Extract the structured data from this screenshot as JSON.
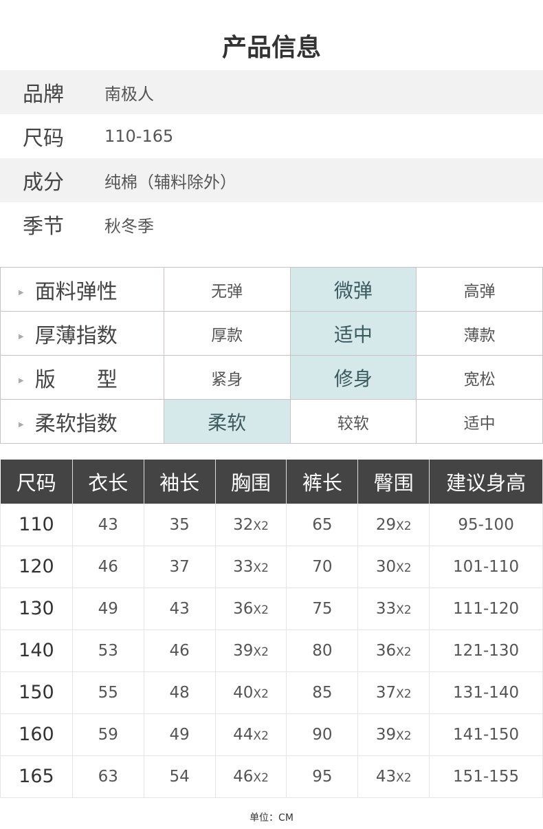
{
  "title": "产品信息",
  "info": [
    {
      "label": "品牌",
      "value": "南极人"
    },
    {
      "label": "尺码",
      "value": "110-165"
    },
    {
      "label": "成分",
      "value": "纯棉（辅料除外）"
    },
    {
      "label": "季节",
      "value": "秋冬季"
    }
  ],
  "highlight_color": "#d5e8ea",
  "attributes": [
    {
      "label": "面料弹性",
      "options": [
        "无弹",
        "微弹",
        "高弹"
      ],
      "selected": 1
    },
    {
      "label": "厚薄指数",
      "options": [
        "厚款",
        "适中",
        "薄款"
      ],
      "selected": 1
    },
    {
      "label": "版　　型",
      "options": [
        "紧身",
        "修身",
        "宽松"
      ],
      "selected": 1
    },
    {
      "label": "柔软指数",
      "options": [
        "柔软",
        "较软",
        "适中"
      ],
      "selected": 0
    }
  ],
  "size_table": {
    "headers": [
      "尺码",
      "衣长",
      "袖长",
      "胸围",
      "裤长",
      "臀围",
      "建议身高"
    ],
    "multiplier": "X2",
    "rows": [
      [
        "110",
        "43",
        "35",
        "32",
        "65",
        "29",
        "95-100"
      ],
      [
        "120",
        "46",
        "37",
        "33",
        "70",
        "30",
        "101-110"
      ],
      [
        "130",
        "49",
        "43",
        "36",
        "75",
        "33",
        "111-120"
      ],
      [
        "140",
        "53",
        "46",
        "39",
        "80",
        "36",
        "121-130"
      ],
      [
        "150",
        "55",
        "48",
        "40",
        "85",
        "37",
        "131-140"
      ],
      [
        "160",
        "59",
        "49",
        "44",
        "90",
        "39",
        "141-150"
      ],
      [
        "165",
        "63",
        "54",
        "46",
        "95",
        "43",
        "151-155"
      ]
    ]
  },
  "unit": "单位：CM"
}
